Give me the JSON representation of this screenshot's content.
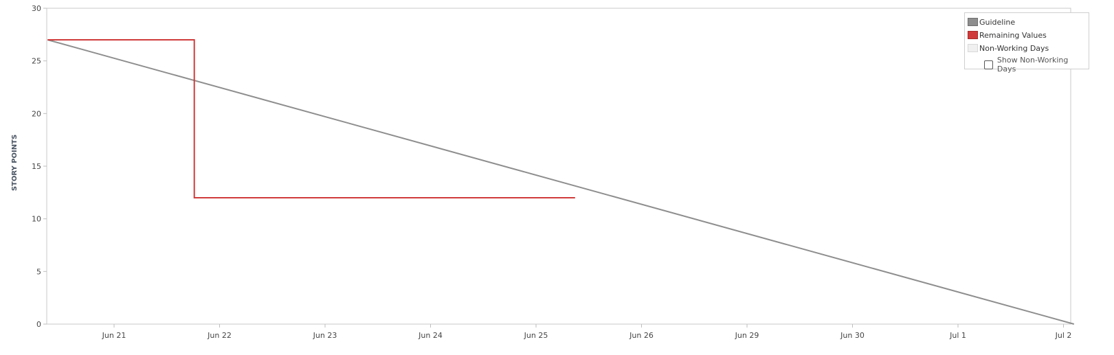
{
  "chart_data": {
    "type": "line",
    "ylabel": "STORY POINTS",
    "xlabel": "",
    "ylim": [
      0,
      30
    ],
    "yticks": [
      0,
      5,
      10,
      15,
      20,
      25,
      30
    ],
    "x_tick_labels": [
      "Jun 21",
      "Jun 22",
      "Jun 23",
      "Jun 24",
      "Jun 25",
      "Jun 26",
      "Jun 29",
      "Jun 30",
      "Jul 1",
      "Jul 2"
    ],
    "x_range_ticks": [
      -0.63,
      9.1
    ],
    "series": [
      {
        "name": "Guideline",
        "color": "#8e8e8e",
        "kind": "line",
        "points": [
          [
            -0.63,
            27
          ],
          [
            9.1,
            0
          ]
        ]
      },
      {
        "name": "Remaining Values",
        "color": "#d03a3a",
        "kind": "step",
        "points": [
          [
            -0.63,
            27
          ],
          [
            0.76,
            27
          ],
          [
            0.76,
            12
          ],
          [
            4.37,
            12
          ]
        ]
      }
    ],
    "grid": false,
    "legend_position": "top-right"
  },
  "legend": {
    "items": [
      {
        "label": "Guideline",
        "color": "#8e8e8e",
        "border": "#6e6e6e"
      },
      {
        "label": "Remaining Values",
        "color": "#d03a3a",
        "border": "#a82a2a"
      },
      {
        "label": "Non-Working Days",
        "color": "#f0f0f0",
        "border": "#d8d8d8"
      }
    ],
    "checkbox_label": "Show Non-Working Days",
    "checkbox_checked": false
  }
}
